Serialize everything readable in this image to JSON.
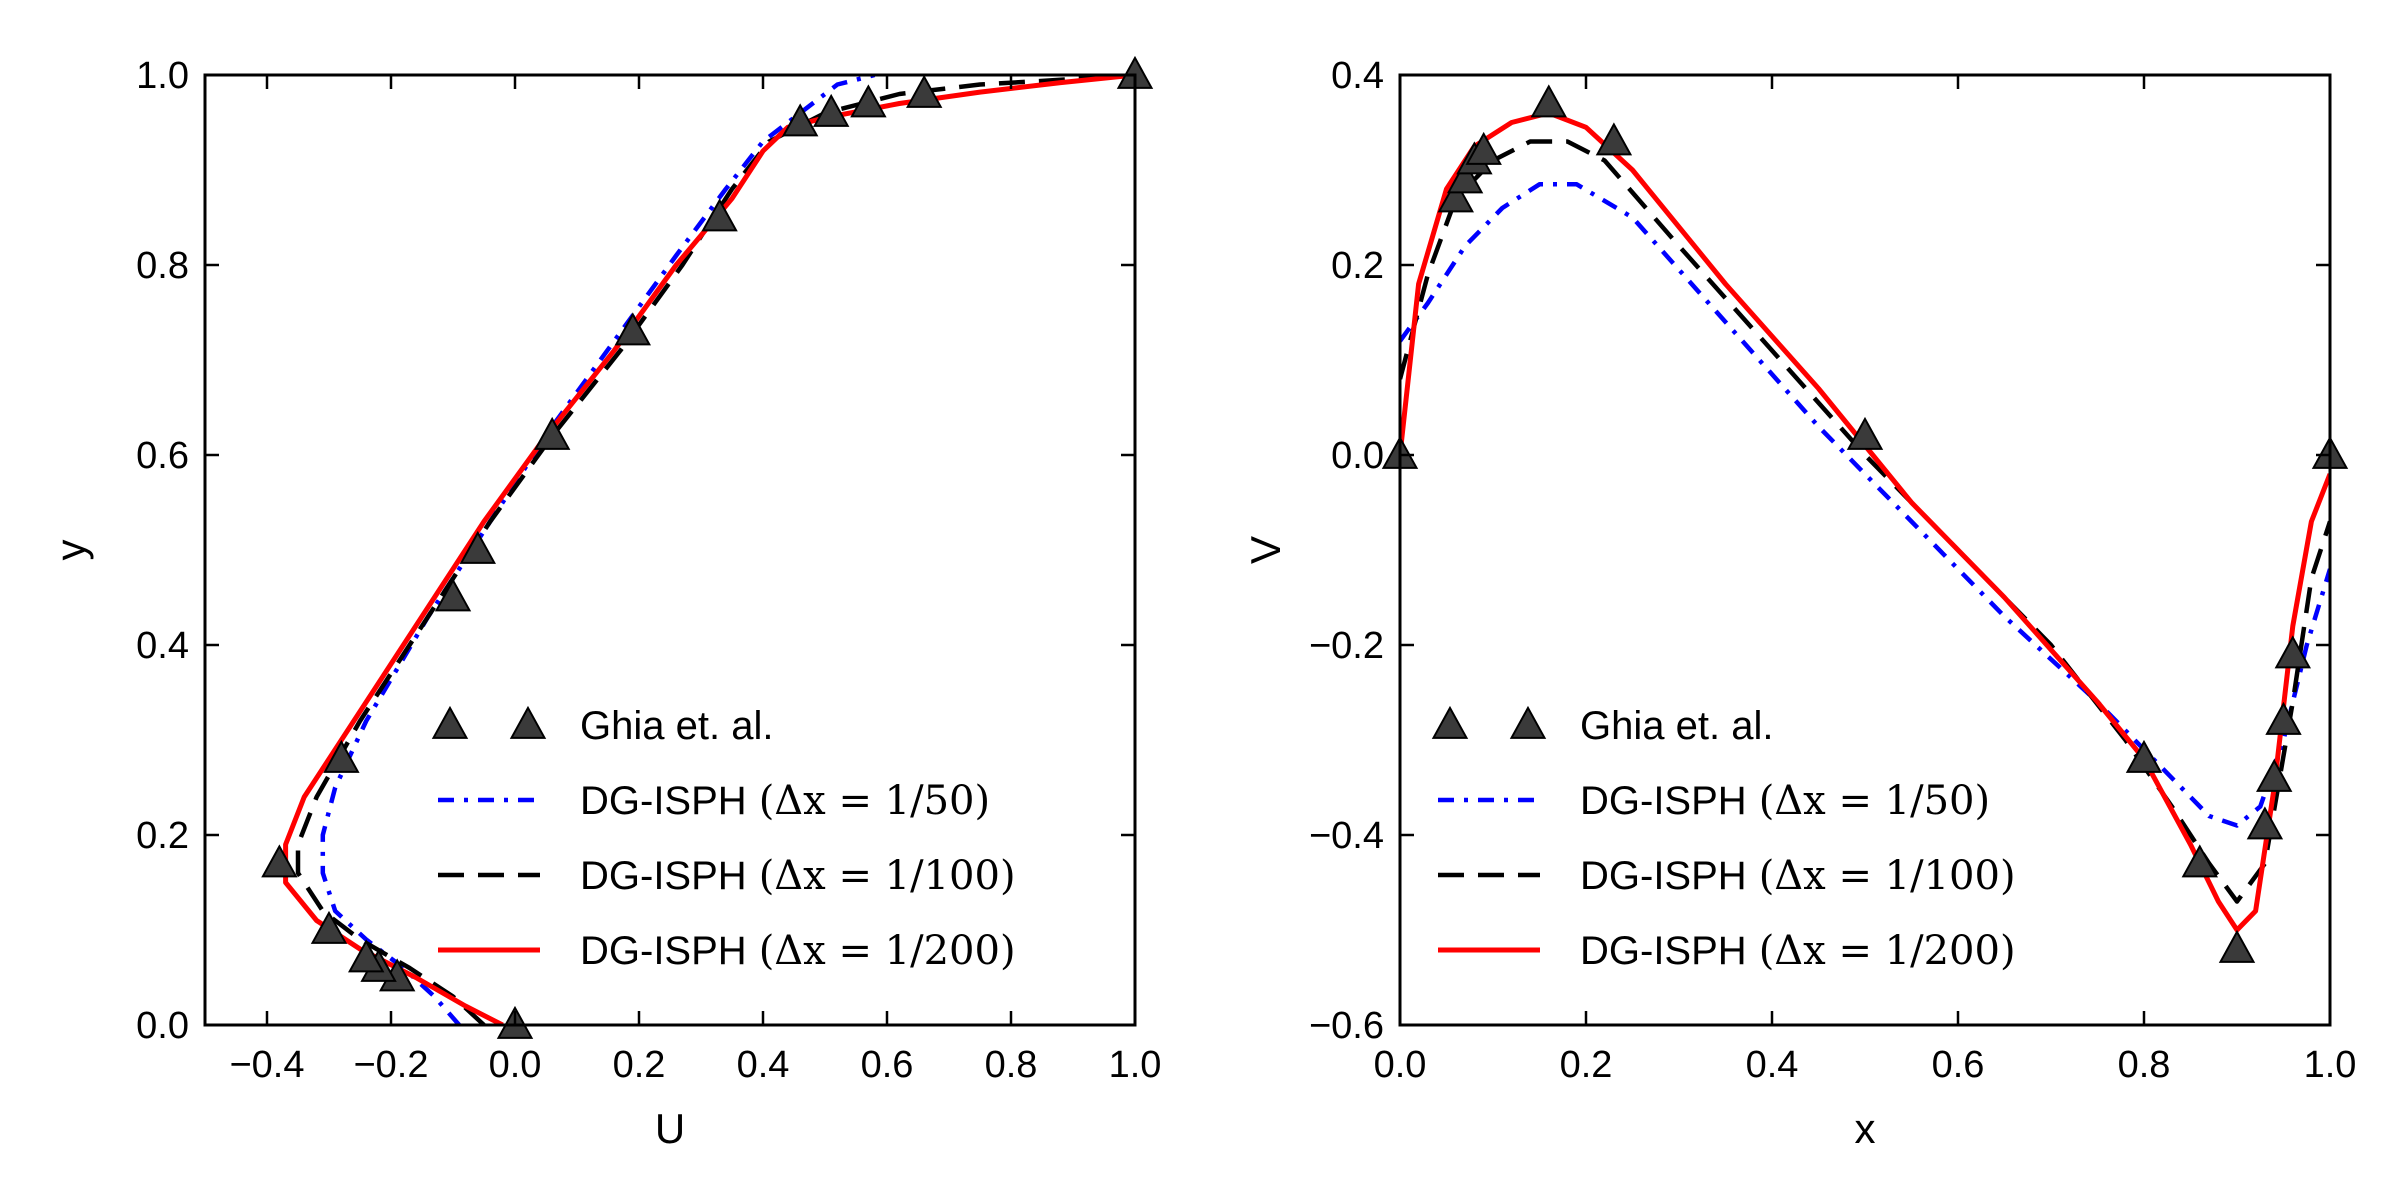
{
  "chart_data": [
    {
      "type": "line",
      "xlabel": "U",
      "ylabel": "y",
      "xlim": [
        -0.5,
        1.0
      ],
      "ylim": [
        0.0,
        1.0
      ],
      "xticks": [
        "−0.4",
        "−0.2",
        "0.0",
        "0.2",
        "0.4",
        "0.6",
        "0.8",
        "1.0"
      ],
      "yticks": [
        "0.0",
        "0.2",
        "0.4",
        "0.6",
        "0.8",
        "1.0"
      ],
      "grid": false,
      "legend_position": "lower-right",
      "series": [
        {
          "name": "Ghia et. al.",
          "style": "markers",
          "color": "#000000",
          "x": [
            0.0,
            -0.19,
            -0.22,
            -0.24,
            -0.3,
            -0.38,
            -0.28,
            -0.1,
            -0.06,
            0.06,
            0.19,
            0.33,
            0.46,
            0.51,
            0.57,
            0.66,
            1.0
          ],
          "y": [
            0.0,
            0.05,
            0.06,
            0.07,
            0.1,
            0.17,
            0.28,
            0.45,
            0.5,
            0.62,
            0.73,
            0.85,
            0.95,
            0.96,
            0.97,
            0.98,
            1.0
          ]
        },
        {
          "name": "DG-ISPH",
          "math": "(Δx = 1/50)",
          "style": "dashdot",
          "color": "#0000ff",
          "x": [
            -0.09,
            -0.13,
            -0.18,
            -0.24,
            -0.29,
            -0.31,
            -0.31,
            -0.29,
            -0.24,
            -0.14,
            -0.04,
            0.06,
            0.16,
            0.26,
            0.34,
            0.4,
            0.46,
            0.52,
            0.58
          ],
          "y": [
            0.0,
            0.03,
            0.06,
            0.09,
            0.12,
            0.16,
            0.2,
            0.25,
            0.32,
            0.43,
            0.53,
            0.63,
            0.72,
            0.81,
            0.88,
            0.93,
            0.96,
            0.99,
            1.0
          ]
        },
        {
          "name": "DG-ISPH",
          "math": "(Δx = 1/100)",
          "style": "dashed",
          "color": "#000000",
          "x": [
            -0.05,
            -0.1,
            -0.17,
            -0.25,
            -0.31,
            -0.35,
            -0.35,
            -0.32,
            -0.25,
            -0.14,
            -0.04,
            0.06,
            0.17,
            0.27,
            0.35,
            0.41,
            0.5,
            0.62,
            0.75,
            0.88,
            1.0
          ],
          "y": [
            0.0,
            0.03,
            0.06,
            0.09,
            0.12,
            0.16,
            0.19,
            0.24,
            0.32,
            0.43,
            0.53,
            0.62,
            0.71,
            0.8,
            0.88,
            0.93,
            0.96,
            0.98,
            0.99,
            0.995,
            1.0
          ]
        },
        {
          "name": "DG-ISPH",
          "math": "(Δx = 1/200)",
          "style": "solid",
          "color": "#ff0000",
          "x": [
            -0.02,
            -0.08,
            -0.16,
            -0.25,
            -0.32,
            -0.37,
            -0.37,
            -0.34,
            -0.26,
            -0.15,
            -0.05,
            0.05,
            0.16,
            0.26,
            0.35,
            0.4,
            0.44,
            0.5,
            0.62,
            0.75,
            0.88,
            1.0
          ],
          "y": [
            0.0,
            0.02,
            0.05,
            0.08,
            0.11,
            0.15,
            0.19,
            0.24,
            0.32,
            0.43,
            0.53,
            0.62,
            0.71,
            0.8,
            0.87,
            0.92,
            0.945,
            0.955,
            0.97,
            0.982,
            0.992,
            1.0
          ]
        }
      ]
    },
    {
      "type": "line",
      "xlabel": "x",
      "ylabel": "V",
      "xlim": [
        0.0,
        1.0
      ],
      "ylim": [
        -0.6,
        0.4
      ],
      "xticks": [
        "0.0",
        "0.2",
        "0.4",
        "0.6",
        "0.8",
        "1.0"
      ],
      "yticks": [
        "−0.6",
        "−0.4",
        "−0.2",
        "0.0",
        "0.2",
        "0.4"
      ],
      "grid": false,
      "legend_position": "lower-left",
      "series": [
        {
          "name": "Ghia et. al.",
          "style": "markers",
          "color": "#000000",
          "x": [
            0.0,
            0.06,
            0.07,
            0.08,
            0.09,
            0.16,
            0.23,
            0.5,
            0.8,
            0.86,
            0.9,
            0.93,
            0.94,
            0.95,
            0.96,
            1.0
          ],
          "y": [
            0.0,
            0.27,
            0.29,
            0.31,
            0.32,
            0.37,
            0.33,
            0.02,
            -0.32,
            -0.43,
            -0.52,
            -0.39,
            -0.34,
            -0.28,
            -0.21,
            0.0
          ],
          "missing_label": ""
        },
        {
          "name": "DG-ISPH",
          "math": "(Δx = 1/50)",
          "style": "dashdot",
          "color": "#0000ff",
          "x": [
            0.0,
            0.03,
            0.07,
            0.11,
            0.15,
            0.19,
            0.25,
            0.35,
            0.45,
            0.55,
            0.65,
            0.75,
            0.8,
            0.84,
            0.87,
            0.9,
            0.925,
            0.95,
            0.975,
            1.0
          ],
          "y": [
            0.12,
            0.16,
            0.22,
            0.26,
            0.285,
            0.285,
            0.25,
            0.14,
            0.03,
            -0.07,
            -0.17,
            -0.26,
            -0.31,
            -0.35,
            -0.38,
            -0.39,
            -0.37,
            -0.3,
            -0.2,
            -0.12
          ]
        },
        {
          "name": "DG-ISPH",
          "math": "(Δx = 1/100)",
          "style": "dashed",
          "color": "#000000",
          "x": [
            0.0,
            0.03,
            0.06,
            0.1,
            0.14,
            0.18,
            0.22,
            0.3,
            0.4,
            0.5,
            0.6,
            0.7,
            0.78,
            0.83,
            0.87,
            0.9,
            0.93,
            0.96,
            0.98,
            1.0
          ],
          "y": [
            0.08,
            0.19,
            0.27,
            0.31,
            0.33,
            0.33,
            0.31,
            0.22,
            0.11,
            0.0,
            -0.1,
            -0.2,
            -0.3,
            -0.37,
            -0.43,
            -0.47,
            -0.43,
            -0.26,
            -0.13,
            -0.07
          ]
        },
        {
          "name": "DG-ISPH",
          "math": "(Δx = 1/200)",
          "style": "solid",
          "color": "#ff0000",
          "x": [
            0.0,
            0.02,
            0.05,
            0.08,
            0.12,
            0.16,
            0.2,
            0.25,
            0.35,
            0.45,
            0.55,
            0.65,
            0.75,
            0.8,
            0.85,
            0.88,
            0.9,
            0.92,
            0.94,
            0.96,
            0.98,
            1.0
          ],
          "y": [
            0.0,
            0.18,
            0.28,
            0.325,
            0.35,
            0.36,
            0.345,
            0.3,
            0.18,
            0.07,
            -0.05,
            -0.15,
            -0.26,
            -0.32,
            -0.41,
            -0.47,
            -0.5,
            -0.48,
            -0.35,
            -0.18,
            -0.07,
            -0.02
          ]
        }
      ]
    }
  ]
}
